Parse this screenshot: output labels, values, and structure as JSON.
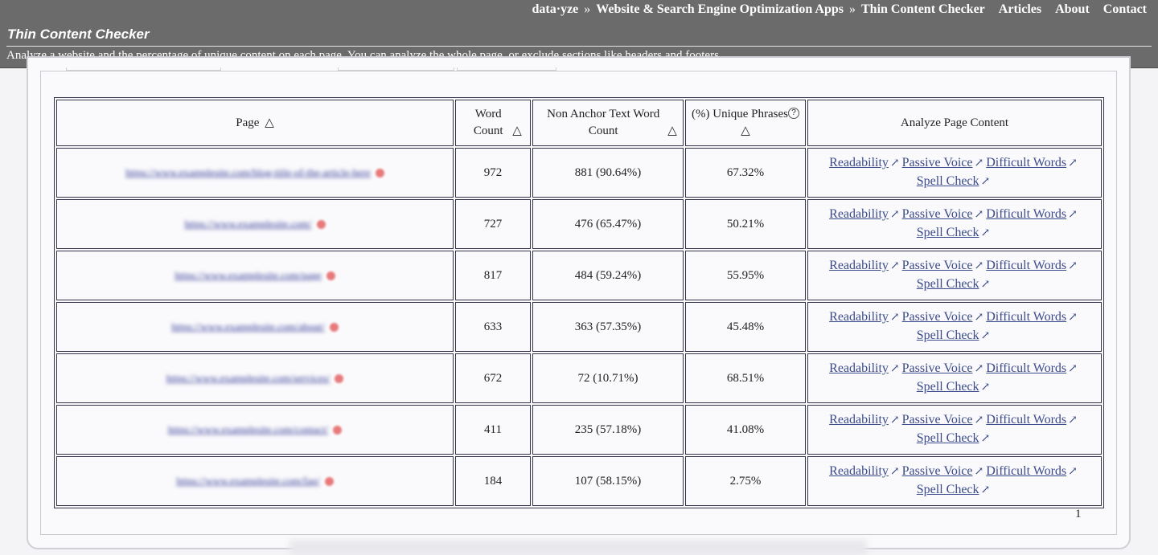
{
  "header": {
    "breadcrumbs": [
      "data·yze",
      "Website & Search Engine Optimization Apps",
      "Thin Content Checker"
    ],
    "separator": "»",
    "nav": [
      "Articles",
      "About",
      "Contact"
    ],
    "title": "Thin Content Checker",
    "description": "Analyze a website and the percentage of unique content on each page. You can analyze the whole page, or exclude sections like headers and footers."
  },
  "table": {
    "headers": {
      "page": "Page",
      "word_count": "Word Count",
      "non_anchor": "Non Anchor Text Word Count",
      "unique": "(%) Unique Phrases",
      "analyze": "Analyze Page Content"
    },
    "sort_glyph": "△",
    "help_glyph": "?",
    "link_labels": {
      "readability": "Readability",
      "passive": "Passive Voice",
      "difficult": "Difficult Words",
      "spell": "Spell Check"
    },
    "ext_glyph": "↗",
    "rows": [
      {
        "url": "https://www.examplesite.com/blog-title-of-the-article-here",
        "word_count": "972",
        "non_anchor": "881 (90.64%)",
        "unique": "67.32%"
      },
      {
        "url": "https://www.examplesite.com/",
        "word_count": "727",
        "non_anchor": "476 (65.47%)",
        "unique": "50.21%"
      },
      {
        "url": "https://www.examplesite.com/page",
        "word_count": "817",
        "non_anchor": "484 (59.24%)",
        "unique": "55.95%"
      },
      {
        "url": "https://www.examplesite.com/about/",
        "word_count": "633",
        "non_anchor": "363 (57.35%)",
        "unique": "45.48%"
      },
      {
        "url": "https://www.examplesite.com/services/",
        "word_count": "672",
        "non_anchor": "72 (10.71%)",
        "unique": "68.51%"
      },
      {
        "url": "https://www.examplesite.com/contact/",
        "word_count": "411",
        "non_anchor": "235 (57.18%)",
        "unique": "41.08%"
      },
      {
        "url": "https://www.examplesite.com/faq/",
        "word_count": "184",
        "non_anchor": "107 (58.15%)",
        "unique": "2.75%"
      }
    ]
  },
  "pager": {
    "page": "1"
  }
}
